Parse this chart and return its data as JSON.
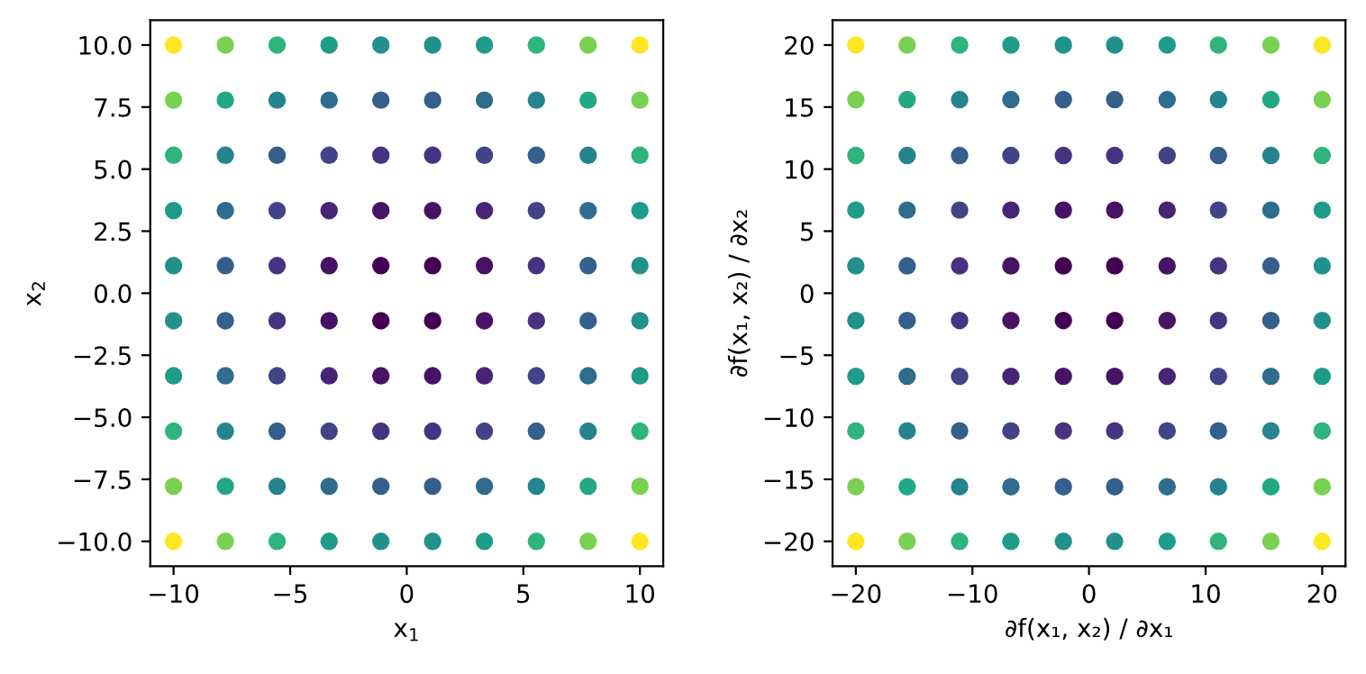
{
  "chart_data": [
    {
      "type": "scatter",
      "xlabel": "x$_{1}$",
      "ylabel": "x$_{2}$",
      "marker": "circle",
      "grid": false,
      "x": [
        -10,
        -7.78,
        -5.56,
        -3.33,
        -1.11,
        1.11,
        3.33,
        5.56,
        7.78,
        10
      ],
      "xlim": [
        -11,
        11
      ],
      "ylim": [
        -11,
        11
      ],
      "xticks": [
        {
          "value": -10,
          "label": "−10"
        },
        {
          "value": -5,
          "label": "−5"
        },
        0,
        5,
        10
      ],
      "yticks": [
        {
          "value": -10,
          "label": "−10.0"
        },
        {
          "value": -7.5,
          "label": "−7.5"
        },
        {
          "value": -5,
          "label": "−5.0"
        },
        {
          "value": -2.5,
          "label": "−2.5"
        },
        {
          "value": 0,
          "label": "0.0"
        },
        {
          "value": 2.5,
          "label": "2.5"
        },
        {
          "value": 5,
          "label": "5.0"
        },
        {
          "value": 7.5,
          "label": "7.5"
        },
        {
          "value": 10,
          "label": "10.0"
        }
      ],
      "series": [
        {
          "values": [
            10,
            10,
            10,
            10,
            10,
            10,
            10,
            10,
            10,
            10
          ],
          "colors": [
            "#fde725",
            "#7ad151",
            "#2fb47c",
            "#1e9c89",
            "#21918c",
            "#21918c",
            "#1e9c89",
            "#2fb47c",
            "#7ad151",
            "#fde725"
          ]
        },
        {
          "values": [
            7.78,
            7.78,
            7.78,
            7.78,
            7.78,
            7.78,
            7.78,
            7.78,
            7.78,
            7.78
          ],
          "colors": [
            "#7ad151",
            "#22a884",
            "#25848e",
            "#2f6c8e",
            "#355f8d",
            "#355f8d",
            "#2f6c8e",
            "#25848e",
            "#22a884",
            "#7ad151"
          ]
        },
        {
          "values": [
            5.56,
            5.56,
            5.56,
            5.56,
            5.56,
            5.56,
            5.56,
            5.56,
            5.56,
            5.56
          ],
          "colors": [
            "#2fb47c",
            "#25848e",
            "#355f8d",
            "#414487",
            "#463480",
            "#463480",
            "#414487",
            "#355f8d",
            "#25848e",
            "#2fb47c"
          ]
        },
        {
          "values": [
            3.33,
            3.33,
            3.33,
            3.33,
            3.33,
            3.33,
            3.33,
            3.33,
            3.33,
            3.33
          ],
          "colors": [
            "#1e9c89",
            "#2f6c8e",
            "#414487",
            "#482475",
            "#471365",
            "#471365",
            "#482475",
            "#414487",
            "#2f6c8e",
            "#1e9c89"
          ]
        },
        {
          "values": [
            1.11,
            1.11,
            1.11,
            1.11,
            1.11,
            1.11,
            1.11,
            1.11,
            1.11,
            1.11
          ],
          "colors": [
            "#21918c",
            "#355f8d",
            "#463480",
            "#471365",
            "#440154",
            "#440154",
            "#471365",
            "#463480",
            "#355f8d",
            "#21918c"
          ]
        },
        {
          "values": [
            -1.11,
            -1.11,
            -1.11,
            -1.11,
            -1.11,
            -1.11,
            -1.11,
            -1.11,
            -1.11,
            -1.11
          ],
          "colors": [
            "#21918c",
            "#355f8d",
            "#463480",
            "#471365",
            "#440154",
            "#440154",
            "#471365",
            "#463480",
            "#355f8d",
            "#21918c"
          ]
        },
        {
          "values": [
            -3.33,
            -3.33,
            -3.33,
            -3.33,
            -3.33,
            -3.33,
            -3.33,
            -3.33,
            -3.33,
            -3.33
          ],
          "colors": [
            "#1e9c89",
            "#2f6c8e",
            "#414487",
            "#482475",
            "#471365",
            "#471365",
            "#482475",
            "#414487",
            "#2f6c8e",
            "#1e9c89"
          ]
        },
        {
          "values": [
            -5.56,
            -5.56,
            -5.56,
            -5.56,
            -5.56,
            -5.56,
            -5.56,
            -5.56,
            -5.56,
            -5.56
          ],
          "colors": [
            "#2fb47c",
            "#25848e",
            "#355f8d",
            "#414487",
            "#463480",
            "#463480",
            "#414487",
            "#355f8d",
            "#25848e",
            "#2fb47c"
          ]
        },
        {
          "values": [
            -7.78,
            -7.78,
            -7.78,
            -7.78,
            -7.78,
            -7.78,
            -7.78,
            -7.78,
            -7.78,
            -7.78
          ],
          "colors": [
            "#7ad151",
            "#22a884",
            "#25848e",
            "#2f6c8e",
            "#355f8d",
            "#355f8d",
            "#2f6c8e",
            "#25848e",
            "#22a884",
            "#7ad151"
          ]
        },
        {
          "values": [
            -10,
            -10,
            -10,
            -10,
            -10,
            -10,
            -10,
            -10,
            -10,
            -10
          ],
          "colors": [
            "#fde725",
            "#7ad151",
            "#2fb47c",
            "#1e9c89",
            "#21918c",
            "#21918c",
            "#1e9c89",
            "#2fb47c",
            "#7ad151",
            "#fde725"
          ]
        }
      ]
    },
    {
      "type": "scatter",
      "xlabel": "∂f(x₁, x₂) / ∂x₁",
      "ylabel": "∂f(x₁, x₂) / ∂x₂",
      "marker": "circle",
      "grid": false,
      "x": [
        -20,
        -15.6,
        -11.1,
        -6.7,
        -2.2,
        2.2,
        6.7,
        11.1,
        15.6,
        20
      ],
      "xlim": [
        -22,
        22
      ],
      "ylim": [
        -22,
        22
      ],
      "xticks": [
        {
          "value": -20,
          "label": "−20"
        },
        {
          "value": -10,
          "label": "−10"
        },
        0,
        10,
        20
      ],
      "yticks": [
        {
          "value": -20,
          "label": "−20"
        },
        {
          "value": -15,
          "label": "−15"
        },
        {
          "value": -10,
          "label": "−10"
        },
        {
          "value": -5,
          "label": "−5"
        },
        0,
        5,
        10,
        15,
        20
      ],
      "series": [
        {
          "values": [
            20,
            20,
            20,
            20,
            20,
            20,
            20,
            20,
            20,
            20
          ],
          "colors": [
            "#fde725",
            "#7ad151",
            "#2fb47c",
            "#1e9c89",
            "#21918c",
            "#21918c",
            "#1e9c89",
            "#2fb47c",
            "#7ad151",
            "#fde725"
          ]
        },
        {
          "values": [
            15.6,
            15.6,
            15.6,
            15.6,
            15.6,
            15.6,
            15.6,
            15.6,
            15.6,
            15.6
          ],
          "colors": [
            "#7ad151",
            "#22a884",
            "#25848e",
            "#2f6c8e",
            "#355f8d",
            "#355f8d",
            "#2f6c8e",
            "#25848e",
            "#22a884",
            "#7ad151"
          ]
        },
        {
          "values": [
            11.1,
            11.1,
            11.1,
            11.1,
            11.1,
            11.1,
            11.1,
            11.1,
            11.1,
            11.1
          ],
          "colors": [
            "#2fb47c",
            "#25848e",
            "#355f8d",
            "#414487",
            "#463480",
            "#463480",
            "#414487",
            "#355f8d",
            "#25848e",
            "#2fb47c"
          ]
        },
        {
          "values": [
            6.7,
            6.7,
            6.7,
            6.7,
            6.7,
            6.7,
            6.7,
            6.7,
            6.7,
            6.7
          ],
          "colors": [
            "#1e9c89",
            "#2f6c8e",
            "#414487",
            "#482475",
            "#471365",
            "#471365",
            "#482475",
            "#414487",
            "#2f6c8e",
            "#1e9c89"
          ]
        },
        {
          "values": [
            2.2,
            2.2,
            2.2,
            2.2,
            2.2,
            2.2,
            2.2,
            2.2,
            2.2,
            2.2
          ],
          "colors": [
            "#21918c",
            "#355f8d",
            "#463480",
            "#471365",
            "#440154",
            "#440154",
            "#471365",
            "#463480",
            "#355f8d",
            "#21918c"
          ]
        },
        {
          "values": [
            -2.2,
            -2.2,
            -2.2,
            -2.2,
            -2.2,
            -2.2,
            -2.2,
            -2.2,
            -2.2,
            -2.2
          ],
          "colors": [
            "#21918c",
            "#355f8d",
            "#463480",
            "#471365",
            "#440154",
            "#440154",
            "#471365",
            "#463480",
            "#355f8d",
            "#21918c"
          ]
        },
        {
          "values": [
            -6.7,
            -6.7,
            -6.7,
            -6.7,
            -6.7,
            -6.7,
            -6.7,
            -6.7,
            -6.7,
            -6.7
          ],
          "colors": [
            "#1e9c89",
            "#2f6c8e",
            "#414487",
            "#482475",
            "#471365",
            "#471365",
            "#482475",
            "#414487",
            "#2f6c8e",
            "#1e9c89"
          ]
        },
        {
          "values": [
            -11.1,
            -11.1,
            -11.1,
            -11.1,
            -11.1,
            -11.1,
            -11.1,
            -11.1,
            -11.1,
            -11.1
          ],
          "colors": [
            "#2fb47c",
            "#25848e",
            "#355f8d",
            "#414487",
            "#463480",
            "#463480",
            "#414487",
            "#355f8d",
            "#25848e",
            "#2fb47c"
          ]
        },
        {
          "values": [
            -15.6,
            -15.6,
            -15.6,
            -15.6,
            -15.6,
            -15.6,
            -15.6,
            -15.6,
            -15.6,
            -15.6
          ],
          "colors": [
            "#7ad151",
            "#22a884",
            "#25848e",
            "#2f6c8e",
            "#355f8d",
            "#355f8d",
            "#2f6c8e",
            "#25848e",
            "#22a884",
            "#7ad151"
          ]
        },
        {
          "values": [
            -20,
            -20,
            -20,
            -20,
            -20,
            -20,
            -20,
            -20,
            -20,
            -20
          ],
          "colors": [
            "#fde725",
            "#7ad151",
            "#2fb47c",
            "#1e9c89",
            "#21918c",
            "#21918c",
            "#1e9c89",
            "#2fb47c",
            "#7ad151",
            "#fde725"
          ]
        }
      ]
    }
  ]
}
